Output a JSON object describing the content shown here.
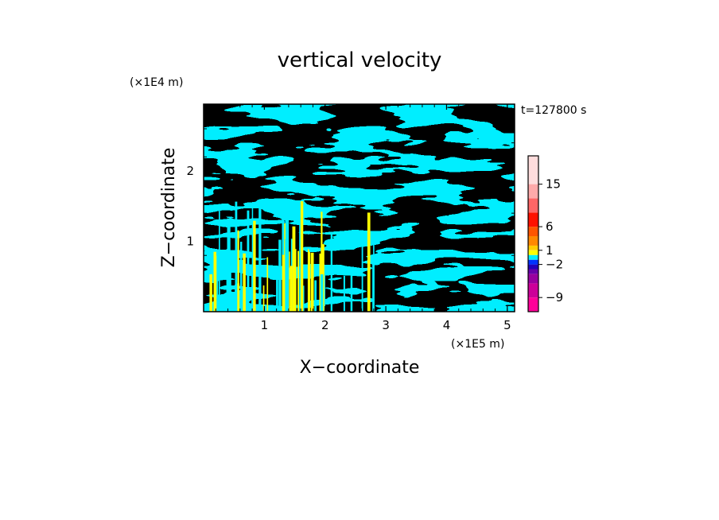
{
  "chart_data": {
    "type": "heatmap",
    "title": "vertical velocity",
    "xlabel": "X−coordinate",
    "ylabel": "Z−coordinate",
    "x_unit": "(×1E5 m)",
    "y_unit": "(×1E4 m)",
    "time_label": "t=127800 s",
    "xlim": [
      0,
      5.12
    ],
    "ylim": [
      0,
      2.95
    ],
    "x_ticks": [
      "1",
      "2",
      "3",
      "4",
      "5"
    ],
    "y_ticks": [
      "1",
      "2"
    ],
    "field_colors": [
      "#ffff00",
      "#00eeff"
    ],
    "colorbar": {
      "ticks": [
        "15",
        "6",
        "1",
        "−2",
        "−9"
      ],
      "colors": [
        "#ff0099",
        "#cc0099",
        "#99009f",
        "#6600aa",
        "#2200bb",
        "#0033ff",
        "#00eeff",
        "#ffff00",
        "#ffcc00",
        "#ff8800",
        "#ff5500",
        "#ff1100",
        "#ff6666",
        "#ffaaaa",
        "#ffdddd"
      ]
    }
  }
}
